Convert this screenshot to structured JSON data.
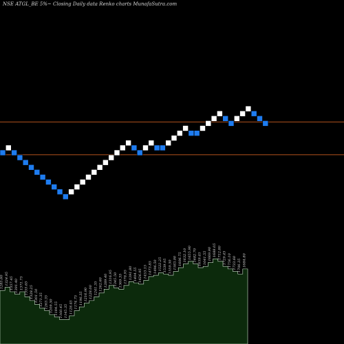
{
  "title": "NSE ATGL_BE 5%~  Closing Daily data  Renko  charts MunafaSutra.com",
  "colors": {
    "background": "#000000",
    "up_brick": "#ffffff",
    "down_brick": "#1e7cf0",
    "reference_line": "#b5541e",
    "volume_fill": "#0c2a0c",
    "volume_edge": "#cfe8cf",
    "volume_label": "#d8d8d8"
  },
  "chart_data": {
    "type": "renko",
    "bricks": [
      {
        "dir": "down",
        "level": 0
      },
      {
        "dir": "up",
        "level": 1
      },
      {
        "dir": "down",
        "level": 0
      },
      {
        "dir": "down",
        "level": -1
      },
      {
        "dir": "down",
        "level": -2
      },
      {
        "dir": "down",
        "level": -3
      },
      {
        "dir": "down",
        "level": -4
      },
      {
        "dir": "down",
        "level": -5
      },
      {
        "dir": "down",
        "level": -6
      },
      {
        "dir": "down",
        "level": -7
      },
      {
        "dir": "down",
        "level": -8
      },
      {
        "dir": "down",
        "level": -9
      },
      {
        "dir": "up",
        "level": -8
      },
      {
        "dir": "up",
        "level": -7
      },
      {
        "dir": "up",
        "level": -6
      },
      {
        "dir": "up",
        "level": -5
      },
      {
        "dir": "up",
        "level": -4
      },
      {
        "dir": "up",
        "level": -3
      },
      {
        "dir": "up",
        "level": -2
      },
      {
        "dir": "up",
        "level": -1
      },
      {
        "dir": "up",
        "level": 0
      },
      {
        "dir": "up",
        "level": 1
      },
      {
        "dir": "up",
        "level": 2
      },
      {
        "dir": "down",
        "level": 1
      },
      {
        "dir": "down",
        "level": 0
      },
      {
        "dir": "up",
        "level": 1
      },
      {
        "dir": "up",
        "level": 2
      },
      {
        "dir": "down",
        "level": 1
      },
      {
        "dir": "down",
        "level": 1
      },
      {
        "dir": "up",
        "level": 2
      },
      {
        "dir": "up",
        "level": 3
      },
      {
        "dir": "up",
        "level": 4
      },
      {
        "dir": "up",
        "level": 5
      },
      {
        "dir": "down",
        "level": 4
      },
      {
        "dir": "down",
        "level": 4
      },
      {
        "dir": "up",
        "level": 5
      },
      {
        "dir": "up",
        "level": 6
      },
      {
        "dir": "up",
        "level": 7
      },
      {
        "dir": "up",
        "level": 8
      },
      {
        "dir": "down",
        "level": 7
      },
      {
        "dir": "down",
        "level": 6
      },
      {
        "dir": "up",
        "level": 7
      },
      {
        "dir": "up",
        "level": 8
      },
      {
        "dir": "up",
        "level": 9
      },
      {
        "dir": "down",
        "level": 8
      },
      {
        "dir": "down",
        "level": 7
      },
      {
        "dir": "down",
        "level": 6
      }
    ],
    "reference_levels": [
      6.3,
      -0.4
    ],
    "volume": {
      "values": [
        62,
        67,
        60,
        56,
        60,
        52,
        46,
        40,
        34,
        30,
        24,
        20,
        16,
        16,
        22,
        30,
        36,
        42,
        46,
        52,
        58,
        64,
        70,
        66,
        64,
        70,
        76,
        74,
        72,
        78,
        84,
        86,
        90,
        88,
        86,
        92,
        98,
        104,
        108,
        104,
        98,
        100,
        106,
        112,
        108,
        100,
        96,
        92,
        88,
        96
      ],
      "labels": [
        "1285.60",
        "1324.95",
        "1357.45",
        "1391.40",
        "1371.75",
        "1355.65",
        "1328.25",
        "1301.50",
        "1271.35",
        "1263.35",
        "1209.50",
        "1184.55",
        "1160.45",
        "1145.35",
        "1128.45",
        "1174.75",
        "1196.35",
        "1216.90",
        "1228.00",
        "1241.35",
        "1262.60",
        "1289.40",
        "1316.95",
        "1345.50",
        "1369.35",
        "1378.95",
        "1391.80",
        "1404.55",
        "1426.95",
        "1453.15",
        "1473.85",
        "1496.50",
        "1522.25",
        "1539.95",
        "1559.50",
        "1583.00",
        "1606.75",
        "1632.10",
        "1655.90",
        "1682.70",
        "1659.45",
        "1641.55",
        "1669.90",
        "1688.05",
        "1712.80",
        "1729.45",
        "1756.10",
        "1733.60",
        "1706.35",
        "1684.80"
      ]
    }
  }
}
